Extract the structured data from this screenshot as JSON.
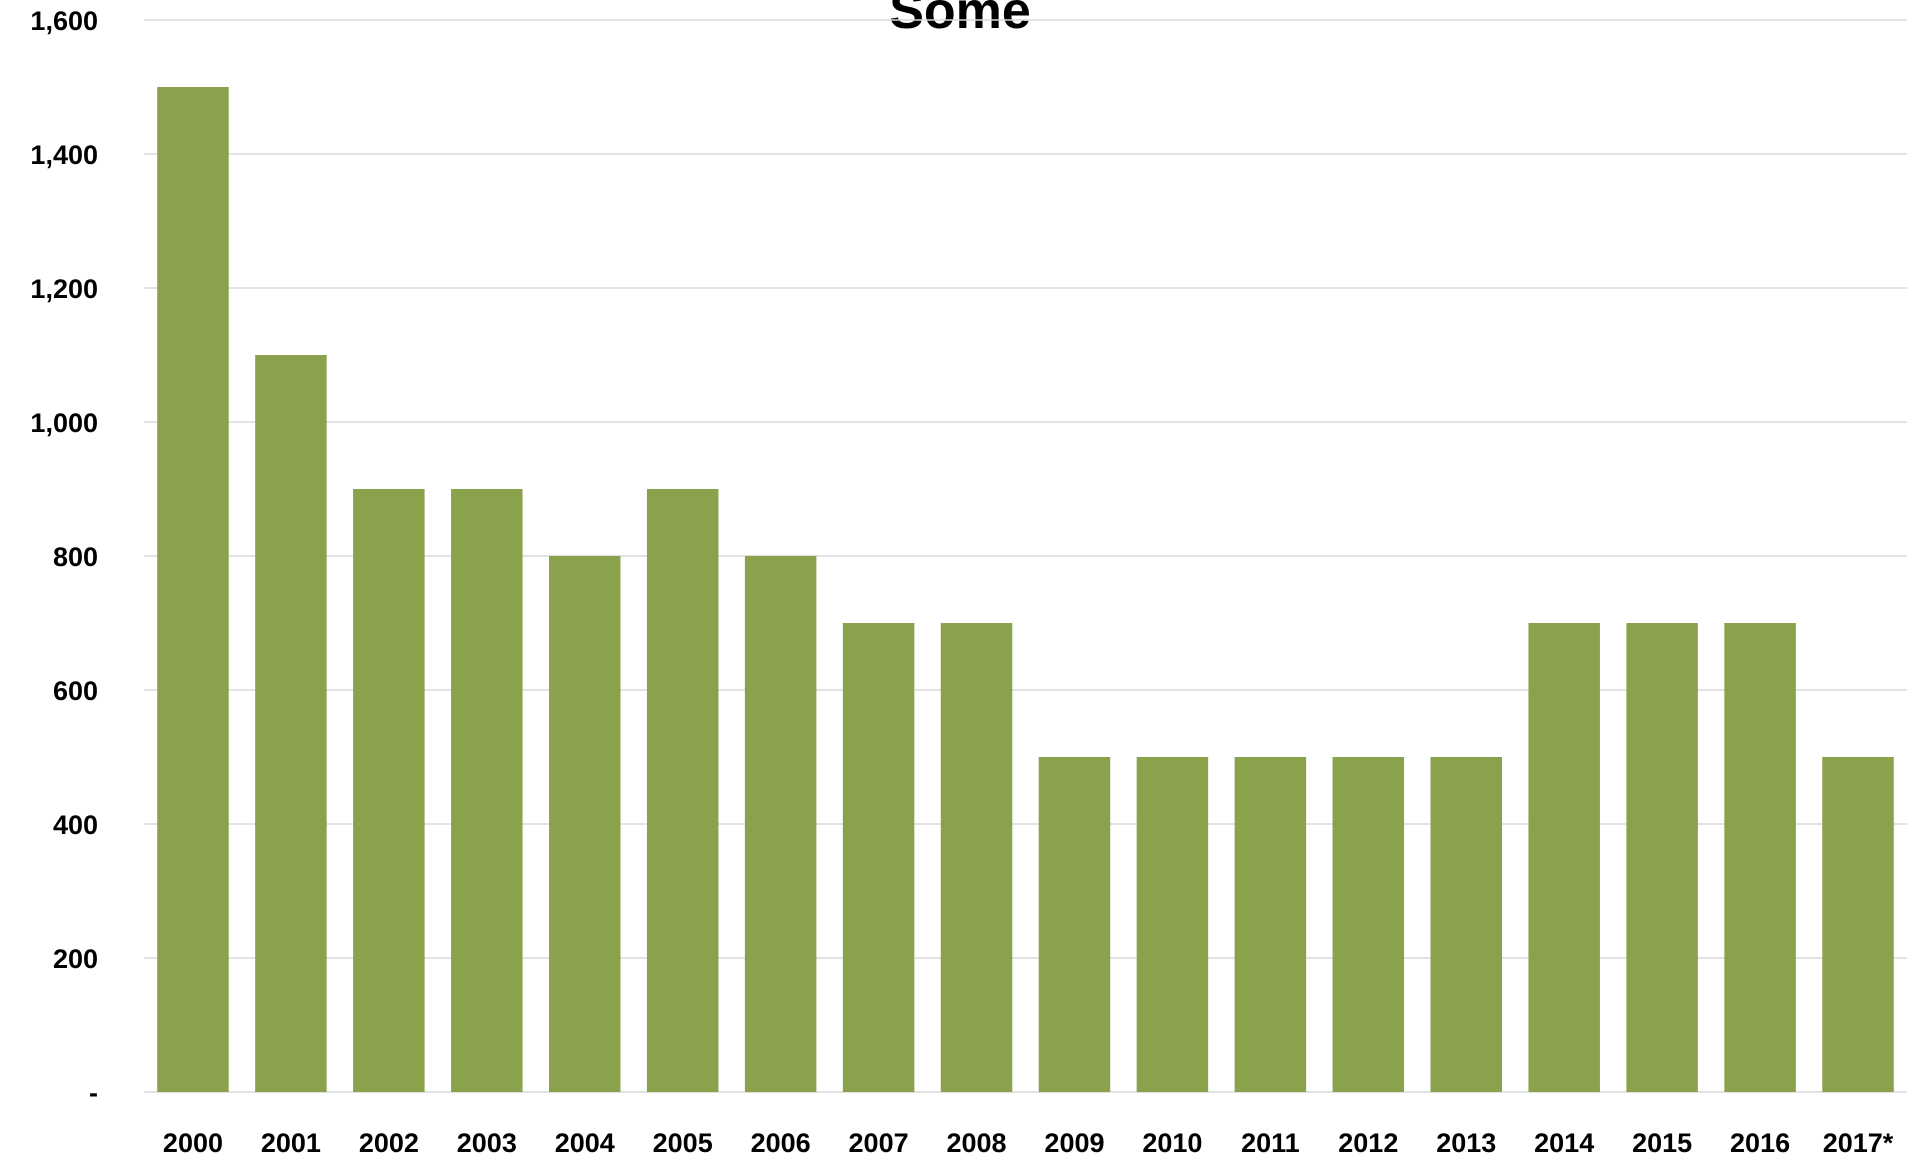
{
  "chart_data": {
    "type": "bar",
    "title": "Some",
    "xlabel": "",
    "ylabel": "",
    "categories": [
      "2000",
      "2001",
      "2002",
      "2003",
      "2004",
      "2005",
      "2006",
      "2007",
      "2008",
      "2009",
      "2010",
      "2011",
      "2012",
      "2013",
      "2014",
      "2015",
      "2016",
      "2017*"
    ],
    "values": [
      1500,
      1100,
      900,
      900,
      800,
      900,
      800,
      700,
      700,
      500,
      500,
      500,
      500,
      500,
      700,
      700,
      700,
      500
    ],
    "ylim": [
      0,
      1600
    ],
    "yticks": [
      0,
      200,
      400,
      600,
      800,
      1000,
      1200,
      1400,
      1600
    ],
    "ytick_labels": [
      "-",
      "200",
      "400",
      "600",
      "800",
      "1,000",
      "1,200",
      "1,400",
      "1,600"
    ],
    "grid": true,
    "legend": "none",
    "bar_color": "#8aa24c"
  }
}
